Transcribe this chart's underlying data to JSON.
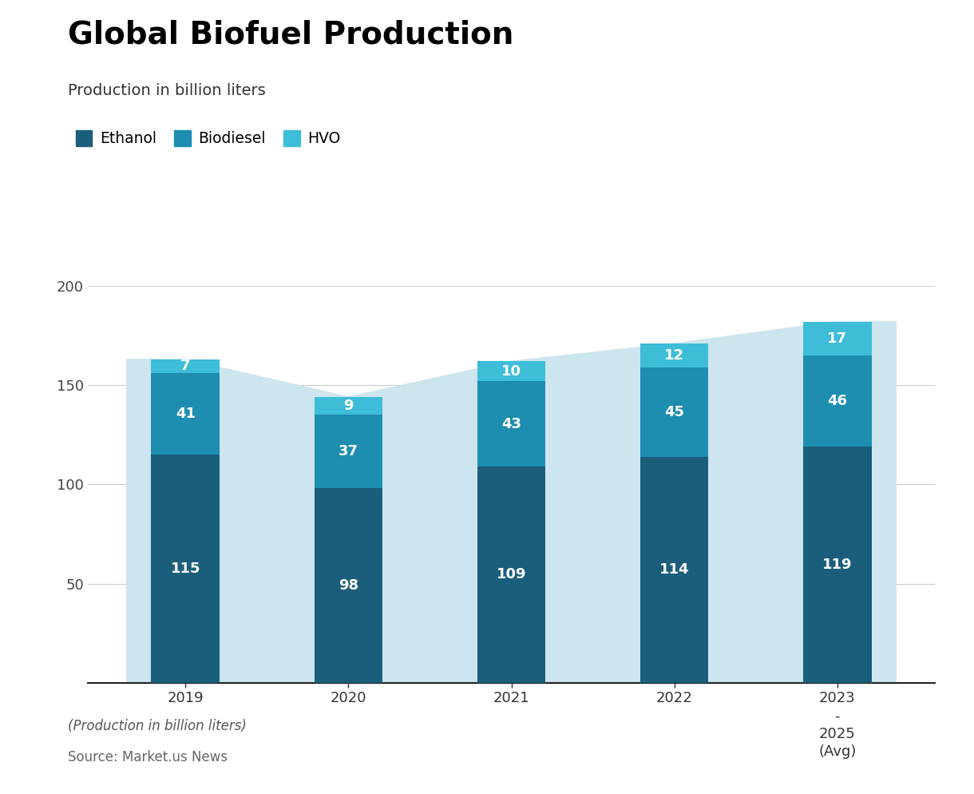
{
  "title": "Global Biofuel Production",
  "subtitle": "Production in billion liters",
  "categories": [
    "2019",
    "2020",
    "2021",
    "2022",
    "2023\n-\n2025\n(Avg)"
  ],
  "ethanol": [
    115,
    98,
    109,
    114,
    119
  ],
  "biodiesel": [
    41,
    37,
    43,
    45,
    46
  ],
  "hvo": [
    7,
    9,
    10,
    12,
    17
  ],
  "color_ethanol": "#1b5e7b",
  "color_biodiesel": "#1d8db0",
  "color_hvo": "#3dbdd8",
  "color_area": "#cde5ee",
  "ylim_max": 220,
  "yticks": [
    0,
    50,
    100,
    150,
    200
  ],
  "footnote": "(Production in billion liters)",
  "source": "Source: Market.us News",
  "legend_labels": [
    "Ethanol",
    "Biodiesel",
    "HVO"
  ],
  "bar_width": 0.42
}
